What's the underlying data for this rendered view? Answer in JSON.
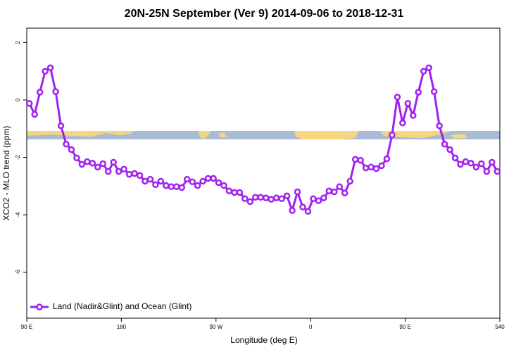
{
  "chart_data": {
    "type": "line",
    "title": "20N-25N September (Ver 9)   2014-09-06 to 2018-12-31",
    "xlabel": "Longitude (deg E)",
    "ylabel": "XCO2 - MLO trend (ppm)",
    "x": [
      92.5,
      97.5,
      102.5,
      107.5,
      112.5,
      117.5,
      122.5,
      127.5,
      132.5,
      137.5,
      142.5,
      147.5,
      152.5,
      157.5,
      162.5,
      167.5,
      172.5,
      177.5,
      182.5,
      187.5,
      192.5,
      197.5,
      202.5,
      207.5,
      212.5,
      217.5,
      222.5,
      227.5,
      232.5,
      237.5,
      242.5,
      247.5,
      252.5,
      257.5,
      262.5,
      267.5,
      272.5,
      277.5,
      282.5,
      287.5,
      292.5,
      297.5,
      302.5,
      307.5,
      312.5,
      317.5,
      322.5,
      327.5,
      332.5,
      337.5,
      342.5,
      347.5,
      352.5,
      357.5,
      362.5,
      367.5,
      372.5,
      377.5,
      382.5,
      387.5,
      392.5,
      397.5,
      402.5,
      407.5,
      412.5,
      417.5,
      422.5,
      427.5,
      432.5,
      437.5,
      442.5,
      447.5,
      452.5,
      457.5,
      462.5,
      467.5,
      472.5,
      477.5,
      482.5,
      487.5,
      492.5,
      497.5,
      502.5,
      507.5,
      512.5,
      517.5,
      522.5,
      527.5,
      532.5,
      537.5
    ],
    "series": [
      {
        "name": "Land (Nadir&Glint) and Ocean (Glint)",
        "color": "#a020f0",
        "values": [
          -0.12,
          -0.5,
          0.27,
          1.0,
          1.12,
          0.29,
          -0.9,
          -1.54,
          -1.73,
          -2.02,
          -2.24,
          -2.15,
          -2.2,
          -2.34,
          -2.22,
          -2.49,
          -2.17,
          -2.49,
          -2.41,
          -2.59,
          -2.56,
          -2.63,
          -2.83,
          -2.76,
          -2.95,
          -2.83,
          -2.98,
          -3.02,
          -3.02,
          -3.05,
          -2.76,
          -2.85,
          -2.98,
          -2.83,
          -2.73,
          -2.73,
          -2.88,
          -2.98,
          -3.17,
          -3.22,
          -3.22,
          -3.44,
          -3.54,
          -3.39,
          -3.39,
          -3.41,
          -3.46,
          -3.41,
          -3.44,
          -3.34,
          -3.85,
          -3.2,
          -3.73,
          -3.88,
          -3.44,
          -3.51,
          -3.41,
          -3.17,
          -3.2,
          -3.02,
          -3.24,
          -2.83,
          -2.07,
          -2.1,
          -2.37,
          -2.34,
          -2.39,
          -2.29,
          -2.05,
          -1.22,
          0.1,
          -0.8,
          -0.12,
          -0.54,
          0.27,
          1.0,
          1.12,
          0.29,
          -0.9,
          -1.54,
          -1.73,
          -2.02,
          -2.24,
          -2.15,
          -2.2,
          -2.34,
          -2.22,
          -2.49,
          -2.17,
          -2.49
        ]
      }
    ],
    "xlim": [
      90,
      540
    ],
    "xticks": [
      {
        "value": 90,
        "label": "90 E"
      },
      180,
      {
        "value": 270,
        "label": "90 W"
      },
      {
        "value": 360,
        "label": "0"
      },
      {
        "value": 450,
        "label": "90 E"
      },
      540
    ],
    "ylim": [
      -7.6,
      2.5
    ],
    "yticks": [
      2,
      0,
      -2,
      -4,
      -6
    ],
    "legend": "bottom-left"
  }
}
